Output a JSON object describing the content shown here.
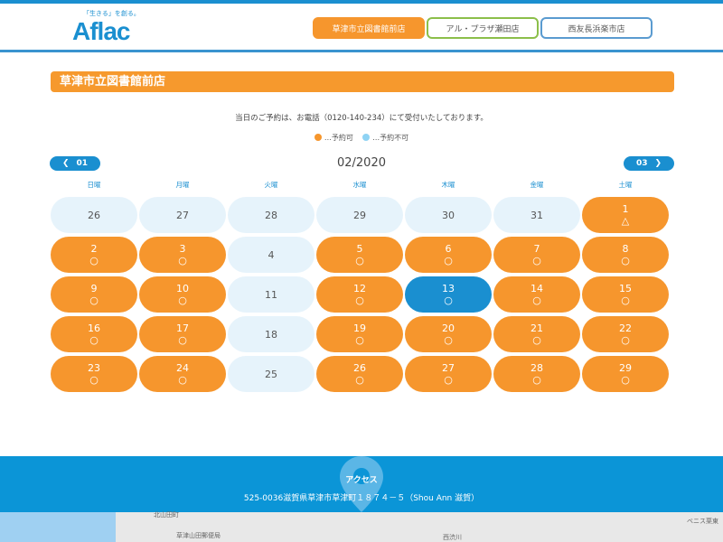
{
  "header": {
    "logo_tagline": "「生きる」を創る。",
    "logo_name": "Aflac",
    "tabs": [
      {
        "label": "草津市立図書館前店",
        "active": true
      },
      {
        "label": "アル・プラザ瀬田店"
      },
      {
        "label": "西友長浜楽市店"
      }
    ]
  },
  "store_title": "草津市立図書館前店",
  "notice": "当日のご予約は、お電話（0120-140-234）にて受付いたしております。",
  "legend": [
    {
      "label": "…予約可",
      "color": "#f6962d"
    },
    {
      "label": "…予約不可",
      "color": "#8fd3f4"
    }
  ],
  "calendar": {
    "prev": "01",
    "next": "03",
    "month": "02/2020",
    "weekdays": [
      "日曜",
      "月曜",
      "火曜",
      "水曜",
      "木曜",
      "金曜",
      "土曜"
    ],
    "days": [
      {
        "d": "26",
        "s": "off"
      },
      {
        "d": "27",
        "s": "off"
      },
      {
        "d": "28",
        "s": "off"
      },
      {
        "d": "29",
        "s": "off"
      },
      {
        "d": "30",
        "s": "off"
      },
      {
        "d": "31",
        "s": "off"
      },
      {
        "d": "1",
        "s": "on",
        "m": "△"
      },
      {
        "d": "2",
        "s": "on",
        "m": "○"
      },
      {
        "d": "3",
        "s": "on",
        "m": "○"
      },
      {
        "d": "4",
        "s": "off"
      },
      {
        "d": "5",
        "s": "on",
        "m": "○"
      },
      {
        "d": "6",
        "s": "on",
        "m": "○"
      },
      {
        "d": "7",
        "s": "on",
        "m": "○"
      },
      {
        "d": "8",
        "s": "on",
        "m": "○"
      },
      {
        "d": "9",
        "s": "on",
        "m": "○"
      },
      {
        "d": "10",
        "s": "on",
        "m": "○"
      },
      {
        "d": "11",
        "s": "off"
      },
      {
        "d": "12",
        "s": "on",
        "m": "○"
      },
      {
        "d": "13",
        "s": "sel",
        "m": "○"
      },
      {
        "d": "14",
        "s": "on",
        "m": "○"
      },
      {
        "d": "15",
        "s": "on",
        "m": "○"
      },
      {
        "d": "16",
        "s": "on",
        "m": "○"
      },
      {
        "d": "17",
        "s": "on",
        "m": "○"
      },
      {
        "d": "18",
        "s": "off"
      },
      {
        "d": "19",
        "s": "on",
        "m": "○"
      },
      {
        "d": "20",
        "s": "on",
        "m": "○"
      },
      {
        "d": "21",
        "s": "on",
        "m": "○"
      },
      {
        "d": "22",
        "s": "on",
        "m": "○"
      },
      {
        "d": "23",
        "s": "on",
        "m": "○"
      },
      {
        "d": "24",
        "s": "on",
        "m": "○"
      },
      {
        "d": "25",
        "s": "off"
      },
      {
        "d": "26",
        "s": "on",
        "m": "○"
      },
      {
        "d": "27",
        "s": "on",
        "m": "○"
      },
      {
        "d": "28",
        "s": "on",
        "m": "○"
      },
      {
        "d": "29",
        "s": "on",
        "m": "○"
      }
    ]
  },
  "access": {
    "heading": "アクセス",
    "address": "525-0036滋賀県草津市草津町１８７４－５（Shou Ann 滋賀）"
  },
  "map": {
    "labels": [
      "北山田町",
      "草津山田郵便局",
      "西渋川",
      "ベニス栗東"
    ]
  }
}
